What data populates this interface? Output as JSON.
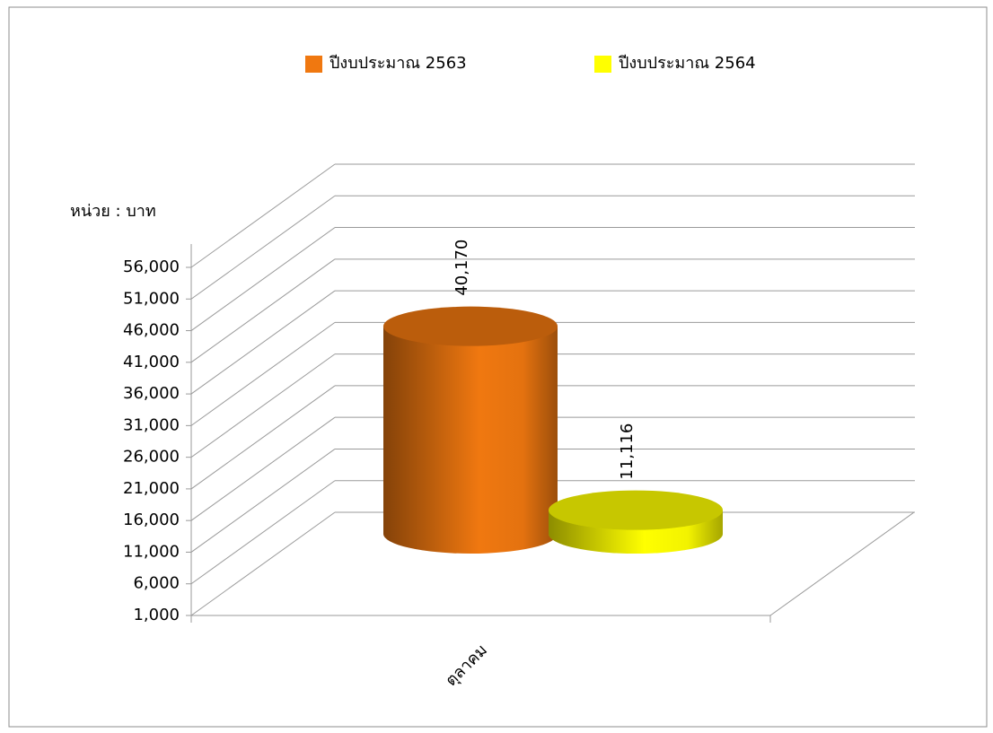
{
  "chart_data": {
    "type": "bar3d",
    "y_label": "หน่วย : บาท",
    "categories": [
      "ตุลาคม"
    ],
    "series": [
      {
        "name": "ปีงบประมาณ 2563",
        "color": "#f07810",
        "values": [
          40170
        ],
        "value_labels": [
          "40,170"
        ]
      },
      {
        "name": "ปีงบประมาณ 2564",
        "color": "#ffff00",
        "values": [
          11116
        ],
        "value_labels": [
          "11,116"
        ]
      }
    ],
    "ylim": [
      1000,
      56000
    ],
    "yticks": [
      {
        "value": 1000,
        "label": "1,000"
      },
      {
        "value": 6000,
        "label": "6,000"
      },
      {
        "value": 11000,
        "label": "11,000"
      },
      {
        "value": 16000,
        "label": "16,000"
      },
      {
        "value": 21000,
        "label": "21,000"
      },
      {
        "value": 26000,
        "label": "26,000"
      },
      {
        "value": 31000,
        "label": "31,000"
      },
      {
        "value": 36000,
        "label": "36,000"
      },
      {
        "value": 41000,
        "label": "41,000"
      },
      {
        "value": 46000,
        "label": "46,000"
      },
      {
        "value": 51000,
        "label": "51,000"
      },
      {
        "value": 56000,
        "label": "56,000"
      }
    ],
    "grid": true,
    "legend": "top"
  }
}
